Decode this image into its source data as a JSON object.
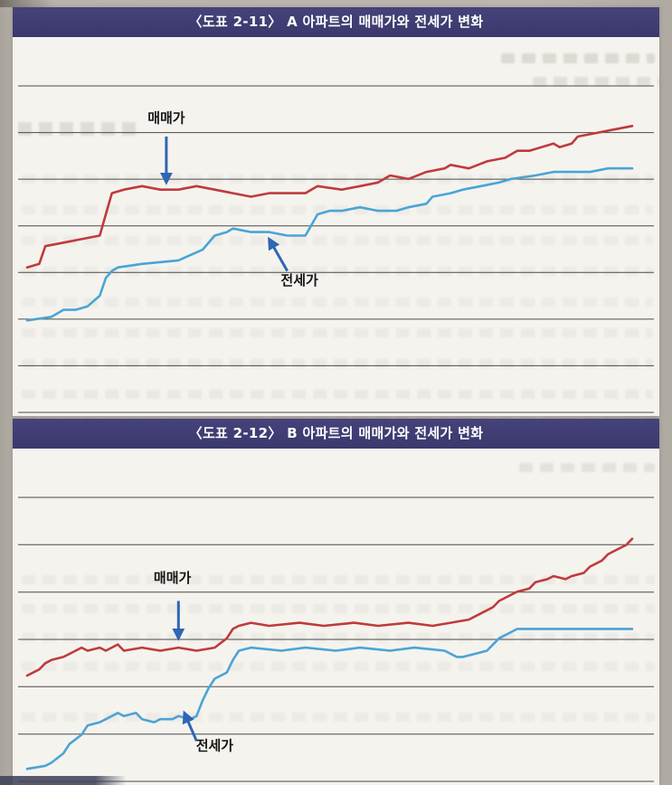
{
  "chart_data": [
    {
      "type": "line",
      "title": "〈도표 2-11〉 A 아파트의 매매가와 전세가 변화",
      "xlabel": "",
      "ylabel": "",
      "x_range": [
        0,
        100
      ],
      "y_range": [
        0,
        100
      ],
      "grid": "horizontal-only",
      "gridlines": {
        "horizontal": 8
      },
      "gridline_color": "#4b4b4b",
      "legend_position": "inline-annotations",
      "annotation_color": "#2f66b5",
      "series": [
        {
          "name": "매매가",
          "color": "#bf3b3c",
          "points": [
            [
              0,
              41
            ],
            [
              2,
              42
            ],
            [
              3,
              47
            ],
            [
              6,
              48
            ],
            [
              9,
              49
            ],
            [
              12,
              50
            ],
            [
              13,
              56
            ],
            [
              14,
              62
            ],
            [
              16,
              63
            ],
            [
              19,
              64
            ],
            [
              22,
              63
            ],
            [
              25,
              63
            ],
            [
              28,
              64
            ],
            [
              31,
              63
            ],
            [
              34,
              62
            ],
            [
              37,
              61
            ],
            [
              40,
              62
            ],
            [
              43,
              62
            ],
            [
              46,
              62
            ],
            [
              48,
              64
            ],
            [
              52,
              63
            ],
            [
              55,
              64
            ],
            [
              58,
              65
            ],
            [
              60,
              67
            ],
            [
              63,
              66
            ],
            [
              66,
              68
            ],
            [
              69,
              69
            ],
            [
              70,
              70
            ],
            [
              73,
              69
            ],
            [
              76,
              71
            ],
            [
              79,
              72
            ],
            [
              81,
              74
            ],
            [
              83,
              74
            ],
            [
              85,
              75
            ],
            [
              87,
              76
            ],
            [
              88,
              75
            ],
            [
              90,
              76
            ],
            [
              91,
              78
            ],
            [
              94,
              79
            ],
            [
              97,
              80
            ],
            [
              100,
              81
            ]
          ]
        },
        {
          "name": "전세가",
          "color": "#4aa4d6",
          "points": [
            [
              0,
              26
            ],
            [
              4,
              27
            ],
            [
              6,
              29
            ],
            [
              8,
              29
            ],
            [
              10,
              30
            ],
            [
              12,
              33
            ],
            [
              13,
              38
            ],
            [
              14,
              40
            ],
            [
              15,
              41
            ],
            [
              19,
              42
            ],
            [
              25,
              43
            ],
            [
              29,
              46
            ],
            [
              31,
              50
            ],
            [
              33,
              51
            ],
            [
              34,
              52
            ],
            [
              37,
              51
            ],
            [
              40,
              51
            ],
            [
              43,
              50
            ],
            [
              46,
              50
            ],
            [
              48,
              56
            ],
            [
              50,
              57
            ],
            [
              52,
              57
            ],
            [
              55,
              58
            ],
            [
              58,
              57
            ],
            [
              61,
              57
            ],
            [
              63,
              58
            ],
            [
              66,
              59
            ],
            [
              67,
              61
            ],
            [
              70,
              62
            ],
            [
              72,
              63
            ],
            [
              75,
              64
            ],
            [
              78,
              65
            ],
            [
              80,
              66
            ],
            [
              84,
              67
            ],
            [
              87,
              68
            ],
            [
              90,
              68
            ],
            [
              93,
              68
            ],
            [
              96,
              69
            ],
            [
              100,
              69
            ]
          ]
        }
      ],
      "annotations": [
        {
          "label": "매매가",
          "points_to": "매매가",
          "text_at": [
            23,
            82
          ],
          "arrow_from": [
            23,
            78
          ],
          "arrow_to": [
            23,
            65
          ]
        },
        {
          "label": "전세가",
          "points_to": "전세가",
          "text_at": [
            45,
            36
          ],
          "arrow_from": [
            43,
            40
          ],
          "arrow_to": [
            40,
            49
          ]
        }
      ]
    },
    {
      "type": "line",
      "title": "〈도표 2-12〉 B 아파트의 매매가와 전세가 변화",
      "xlabel": "",
      "ylabel": "",
      "x_range": [
        0,
        100
      ],
      "y_range": [
        0,
        100
      ],
      "grid": "horizontal-only",
      "gridlines": {
        "horizontal": 7
      },
      "gridline_color": "#4b4b4b",
      "legend_position": "inline-annotations",
      "annotation_color": "#2f66b5",
      "series": [
        {
          "name": "매매가",
          "color": "#bf3b3c",
          "points": [
            [
              0,
              34
            ],
            [
              2,
              36
            ],
            [
              3,
              38
            ],
            [
              4,
              39
            ],
            [
              6,
              40
            ],
            [
              7,
              41
            ],
            [
              9,
              43
            ],
            [
              10,
              42
            ],
            [
              12,
              43
            ],
            [
              13,
              42
            ],
            [
              15,
              44
            ],
            [
              16,
              42
            ],
            [
              19,
              43
            ],
            [
              22,
              42
            ],
            [
              25,
              43
            ],
            [
              28,
              42
            ],
            [
              31,
              43
            ],
            [
              33,
              46
            ],
            [
              34,
              49
            ],
            [
              35,
              50
            ],
            [
              37,
              51
            ],
            [
              40,
              50
            ],
            [
              45,
              51
            ],
            [
              49,
              50
            ],
            [
              54,
              51
            ],
            [
              58,
              50
            ],
            [
              63,
              51
            ],
            [
              67,
              50
            ],
            [
              70,
              51
            ],
            [
              73,
              52
            ],
            [
              75,
              54
            ],
            [
              77,
              56
            ],
            [
              78,
              58
            ],
            [
              80,
              60
            ],
            [
              81,
              61
            ],
            [
              83,
              62
            ],
            [
              84,
              64
            ],
            [
              86,
              65
            ],
            [
              87,
              66
            ],
            [
              89,
              65
            ],
            [
              90,
              66
            ],
            [
              92,
              67
            ],
            [
              93,
              69
            ],
            [
              95,
              71
            ],
            [
              96,
              73
            ],
            [
              97,
              74
            ],
            [
              99,
              76
            ],
            [
              100,
              78
            ]
          ]
        },
        {
          "name": "전세가",
          "color": "#4aa4d6",
          "points": [
            [
              0,
              4
            ],
            [
              3,
              5
            ],
            [
              4,
              6
            ],
            [
              6,
              9
            ],
            [
              7,
              12
            ],
            [
              9,
              15
            ],
            [
              10,
              18
            ],
            [
              12,
              19
            ],
            [
              13,
              20
            ],
            [
              15,
              22
            ],
            [
              16,
              21
            ],
            [
              18,
              22
            ],
            [
              19,
              20
            ],
            [
              21,
              19
            ],
            [
              22,
              20
            ],
            [
              24,
              20
            ],
            [
              25,
              21
            ],
            [
              27,
              20
            ],
            [
              28,
              21
            ],
            [
              29,
              26
            ],
            [
              30,
              30
            ],
            [
              31,
              33
            ],
            [
              32,
              34
            ],
            [
              33,
              35
            ],
            [
              34,
              39
            ],
            [
              35,
              42
            ],
            [
              37,
              43
            ],
            [
              42,
              42
            ],
            [
              46,
              43
            ],
            [
              51,
              42
            ],
            [
              55,
              43
            ],
            [
              60,
              42
            ],
            [
              64,
              43
            ],
            [
              69,
              42
            ],
            [
              71,
              40
            ],
            [
              72,
              40
            ],
            [
              74,
              41
            ],
            [
              76,
              42
            ],
            [
              78,
              46
            ],
            [
              80,
              48
            ],
            [
              81,
              49
            ],
            [
              85,
              49
            ],
            [
              90,
              49
            ],
            [
              94,
              49
            ],
            [
              100,
              49
            ]
          ]
        }
      ],
      "annotations": [
        {
          "label": "매매가",
          "points_to": "매매가",
          "text_at": [
            24,
            64
          ],
          "arrow_from": [
            25,
            58
          ],
          "arrow_to": [
            25,
            46
          ]
        },
        {
          "label": "전세가",
          "points_to": "전세가",
          "text_at": [
            31,
            10
          ],
          "arrow_from": [
            28,
            13
          ],
          "arrow_to": [
            26,
            22
          ]
        }
      ]
    }
  ]
}
